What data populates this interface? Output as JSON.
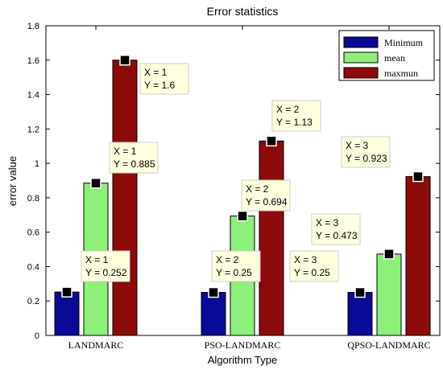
{
  "chart_data": {
    "type": "bar",
    "title": "Error statistics",
    "xlabel": "Algorithm Type",
    "ylabel": "error value",
    "ylim": [
      0,
      1.8
    ],
    "yticks": [
      "0",
      "0.2",
      "0.4",
      "0.6",
      "0.8",
      "1",
      "1.2",
      "1.4",
      "1.6",
      "1.8"
    ],
    "categories": [
      "LANDMARC",
      "PSO-LANDMARC",
      "QPSO-LANDMARC"
    ],
    "series": [
      {
        "name": "Minimum",
        "color": "#0a0a96",
        "values": [
          0.252,
          0.25,
          0.25
        ]
      },
      {
        "name": "mean",
        "color": "#8cf07a",
        "values": [
          0.885,
          0.694,
          0.473
        ]
      },
      {
        "name": "maxmun",
        "color": "#8c0a0a",
        "values": [
          1.6,
          1.13,
          0.923
        ]
      }
    ],
    "legend_position": "top-right",
    "grid": false,
    "datatips": [
      {
        "series": 0,
        "category": 0,
        "x_text": "X = 1",
        "y_text": "Y = 0.252"
      },
      {
        "series": 1,
        "category": 0,
        "x_text": "X = 1",
        "y_text": "Y = 0.885"
      },
      {
        "series": 2,
        "category": 0,
        "x_text": "X = 1",
        "y_text": "Y = 1.6"
      },
      {
        "series": 0,
        "category": 1,
        "x_text": "X = 2",
        "y_text": "Y = 0.25"
      },
      {
        "series": 1,
        "category": 1,
        "x_text": "X = 2",
        "y_text": "Y = 0.694"
      },
      {
        "series": 2,
        "category": 1,
        "x_text": "X = 2",
        "y_text": "Y = 1.13"
      },
      {
        "series": 0,
        "category": 2,
        "x_text": "X = 3",
        "y_text": "Y = 0.25"
      },
      {
        "series": 1,
        "category": 2,
        "x_text": "X = 3",
        "y_text": "Y = 0.473"
      },
      {
        "series": 2,
        "category": 2,
        "x_text": "X = 3",
        "y_text": "Y = 0.923"
      }
    ],
    "datatip_color": "#ffffe0"
  }
}
